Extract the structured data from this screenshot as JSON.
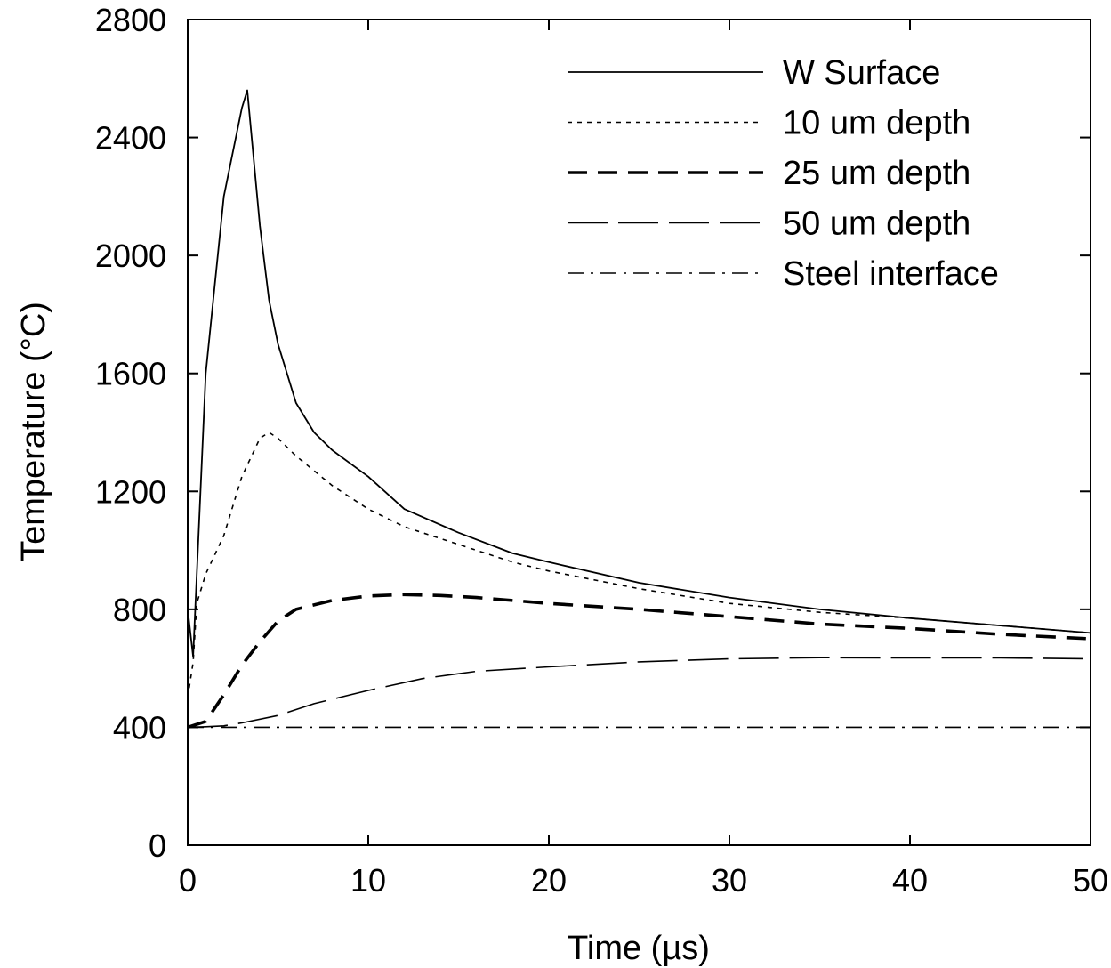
{
  "chart_data": {
    "type": "line",
    "xlabel": "Time (µs)",
    "ylabel": "Temperature (°C)",
    "xlim": [
      0,
      50
    ],
    "ylim": [
      0,
      2800
    ],
    "xticks": [
      0,
      10,
      20,
      30,
      40,
      50
    ],
    "yticks": [
      0,
      400,
      800,
      1200,
      1600,
      2000,
      2400,
      2800
    ],
    "xtick_labels": [
      "0",
      "10",
      "20",
      "30",
      "40",
      "50"
    ],
    "ytick_labels": [
      "0",
      "400",
      "800",
      "1200",
      "1600",
      "2000",
      "2400",
      "2800"
    ],
    "grid": false,
    "legend_position": "top-right",
    "series": [
      {
        "name": "W Surface",
        "style": "solid",
        "x": [
          0,
          0.3,
          1,
          2,
          3,
          3.3,
          4,
          4.5,
          5,
          6,
          7,
          8,
          10,
          12,
          15,
          18,
          20,
          25,
          30,
          35,
          40,
          45,
          50
        ],
        "y": [
          800,
          640,
          1600,
          2200,
          2500,
          2560,
          2100,
          1850,
          1700,
          1500,
          1400,
          1340,
          1250,
          1140,
          1060,
          990,
          960,
          890,
          840,
          800,
          770,
          745,
          720
        ]
      },
      {
        "name": "10 um depth",
        "style": "dotted",
        "x": [
          0,
          0.3,
          0.5,
          1,
          2,
          3,
          4,
          4.5,
          5,
          6,
          8,
          10,
          12,
          15,
          18,
          20,
          25,
          30,
          35,
          40,
          45,
          50
        ],
        "y": [
          500,
          620,
          820,
          920,
          1050,
          1250,
          1380,
          1400,
          1380,
          1320,
          1220,
          1140,
          1080,
          1020,
          960,
          930,
          870,
          820,
          790,
          770,
          745,
          720
        ]
      },
      {
        "name": "25 um depth",
        "style": "dashed-thick",
        "x": [
          0,
          1,
          2,
          3,
          4,
          5,
          6,
          8,
          10,
          12,
          14,
          16,
          20,
          25,
          30,
          35,
          40,
          45,
          50
        ],
        "y": [
          400,
          420,
          510,
          610,
          690,
          760,
          800,
          830,
          845,
          850,
          847,
          840,
          820,
          800,
          775,
          750,
          735,
          715,
          700
        ]
      },
      {
        "name": "50 um depth",
        "style": "long-dash",
        "x": [
          0,
          1,
          2,
          3,
          5,
          7,
          10,
          13,
          16,
          20,
          25,
          30,
          35,
          40,
          45,
          50
        ],
        "y": [
          400,
          402,
          405,
          415,
          440,
          480,
          525,
          565,
          590,
          605,
          622,
          632,
          636,
          635,
          635,
          632
        ]
      },
      {
        "name": "Steel interface",
        "style": "dash-dot",
        "x": [
          0,
          10,
          20,
          30,
          40,
          50
        ],
        "y": [
          400,
          400,
          400,
          400,
          400,
          400
        ]
      }
    ]
  }
}
